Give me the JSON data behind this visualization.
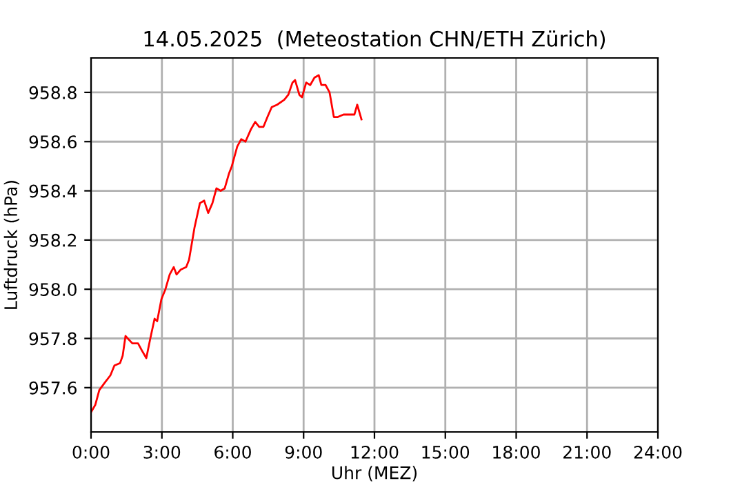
{
  "chart_data": {
    "type": "line",
    "title": "14.05.2025  (Meteostation CHN/ETH Zürich)",
    "xlabel": "Uhr (MEZ)",
    "ylabel": "Luftdruck (hPa)",
    "x": [
      0,
      0.18,
      0.35,
      0.58,
      0.82,
      0.99,
      1.23,
      1.34,
      1.46,
      1.75,
      1.99,
      2.16,
      2.34,
      2.51,
      2.69,
      2.8,
      2.98,
      3.15,
      3.33,
      3.5,
      3.62,
      3.8,
      4.03,
      4.15,
      4.38,
      4.61,
      4.79,
      4.96,
      5.14,
      5.31,
      5.49,
      5.66,
      5.84,
      5.96,
      6.19,
      6.36,
      6.54,
      6.77,
      6.95,
      7.12,
      7.3,
      7.47,
      7.65,
      7.88,
      8.18,
      8.35,
      8.53,
      8.64,
      8.82,
      8.93,
      9.11,
      9.28,
      9.46,
      9.64,
      9.75,
      9.93,
      10.1,
      10.28,
      10.45,
      10.69,
      10.92,
      11.15,
      11.27,
      11.45
    ],
    "series": [
      {
        "color": "#ff0000",
        "values": [
          957.5,
          957.53,
          957.59,
          957.62,
          957.65,
          957.69,
          957.7,
          957.73,
          957.81,
          957.78,
          957.78,
          957.75,
          957.72,
          957.8,
          957.88,
          957.87,
          957.96,
          958.0,
          958.06,
          958.09,
          958.06,
          958.08,
          958.09,
          958.12,
          958.25,
          958.35,
          958.36,
          958.31,
          958.35,
          958.41,
          958.4,
          958.41,
          958.47,
          958.5,
          958.58,
          958.61,
          958.6,
          958.65,
          958.68,
          958.66,
          958.66,
          958.7,
          958.74,
          958.75,
          958.77,
          958.79,
          958.84,
          958.85,
          958.79,
          958.78,
          958.84,
          958.83,
          958.86,
          958.87,
          958.83,
          958.83,
          958.8,
          958.7,
          958.7,
          958.71,
          958.71,
          958.71,
          958.75,
          958.69
        ]
      }
    ],
    "xlim": [
      0,
      24
    ],
    "ylim": [
      957.42,
      958.94
    ],
    "xticks": [
      {
        "value": 0,
        "label": "0:00"
      },
      {
        "value": 3,
        "label": "3:00"
      },
      {
        "value": 6,
        "label": "6:00"
      },
      {
        "value": 9,
        "label": "9:00"
      },
      {
        "value": 12,
        "label": "12:00"
      },
      {
        "value": 15,
        "label": "15:00"
      },
      {
        "value": 18,
        "label": "18:00"
      },
      {
        "value": 21,
        "label": "21:00"
      },
      {
        "value": 24,
        "label": "24:00"
      }
    ],
    "yticks": [
      {
        "value": 957.6,
        "label": "957.6"
      },
      {
        "value": 957.8,
        "label": "957.8"
      },
      {
        "value": 958.0,
        "label": "958.0"
      },
      {
        "value": 958.2,
        "label": "958.2"
      },
      {
        "value": 958.4,
        "label": "958.4"
      },
      {
        "value": 958.6,
        "label": "958.6"
      },
      {
        "value": 958.8,
        "label": "958.8"
      }
    ],
    "grid": true,
    "line_style": "solid"
  }
}
